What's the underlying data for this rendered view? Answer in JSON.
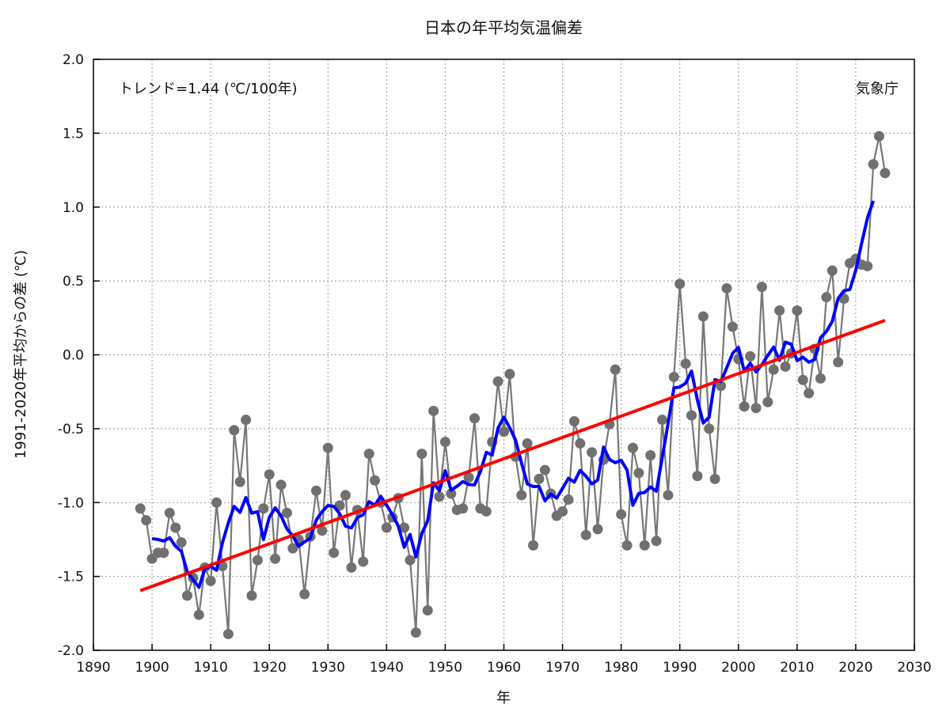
{
  "chart_data": {
    "type": "line",
    "title": "日本の年平均気温偏差",
    "xlabel": "年",
    "ylabel": "1991-2020年平均からの差 (℃)",
    "annotation_trend": "トレンド=1.44 (℃/100年)",
    "annotation_source": "気象庁",
    "trend_per_100yr": 1.44,
    "xlim": [
      1890,
      2030
    ],
    "ylim": [
      -2.0,
      2.0
    ],
    "xticks": [
      "1890",
      "1900",
      "1910",
      "1920",
      "1930",
      "1940",
      "1950",
      "1960",
      "1970",
      "1980",
      "1990",
      "2000",
      "2010",
      "2020",
      "2030"
    ],
    "yticks": [
      "2.0",
      "1.5",
      "1.0",
      "0.5",
      "0.0",
      "-0.5",
      "-1.0",
      "-1.5",
      "-2.0"
    ],
    "grid": true,
    "colors": {
      "annual": "#707070",
      "running_mean": "#0000ff",
      "trend": "#ff0000"
    },
    "start_year": 1898,
    "series": [
      {
        "values": [
          -1.04,
          -1.12,
          -1.38,
          -1.34,
          -1.34,
          -1.07,
          -1.17,
          -1.27,
          -1.63,
          -1.51,
          -1.76,
          -1.44,
          -1.53,
          -1.0,
          -1.43,
          -1.89,
          -0.51,
          -0.86,
          -0.44,
          -1.63,
          -1.39,
          -1.04,
          -0.81,
          -1.38,
          -0.88,
          -1.07,
          -1.31,
          -1.25,
          -1.62,
          -1.23,
          -0.92,
          -1.19,
          -0.63,
          -1.34,
          -1.02,
          -0.95,
          -1.44,
          -1.05,
          -1.4,
          -0.67,
          -0.85,
          -1.0,
          -1.17,
          -1.1,
          -0.97,
          -1.17,
          -1.39,
          -1.88,
          -0.67,
          -1.73,
          -0.38,
          -0.96,
          -0.59,
          -0.94,
          -1.05,
          -1.04,
          -0.83,
          -0.43,
          -1.04,
          -1.06,
          -0.59,
          -0.18,
          -0.52,
          -0.13,
          -0.69,
          -0.95,
          -0.6,
          -1.29,
          -0.84,
          -0.78,
          -0.94,
          -1.09,
          -1.06,
          -0.98,
          -0.45,
          -0.6,
          -1.22,
          -0.66,
          -1.18,
          -0.71,
          -0.47,
          -0.1,
          -1.08,
          -1.29,
          -0.63,
          -0.8,
          -1.29,
          -0.68,
          -1.26,
          -0.44,
          -0.95,
          -0.15,
          0.48,
          -0.06,
          -0.41,
          -0.82,
          0.26,
          -0.5,
          -0.84,
          -0.21,
          0.45,
          0.19,
          -0.03,
          -0.35,
          -0.01,
          -0.36,
          0.46,
          -0.32,
          -0.1,
          0.3,
          -0.08,
          0.01,
          0.3,
          -0.17,
          -0.26,
          0.04,
          -0.16,
          0.39,
          0.57,
          -0.05,
          0.38,
          0.62,
          0.65,
          0.61,
          0.6,
          1.29,
          1.48,
          1.23
        ]
      }
    ]
  }
}
